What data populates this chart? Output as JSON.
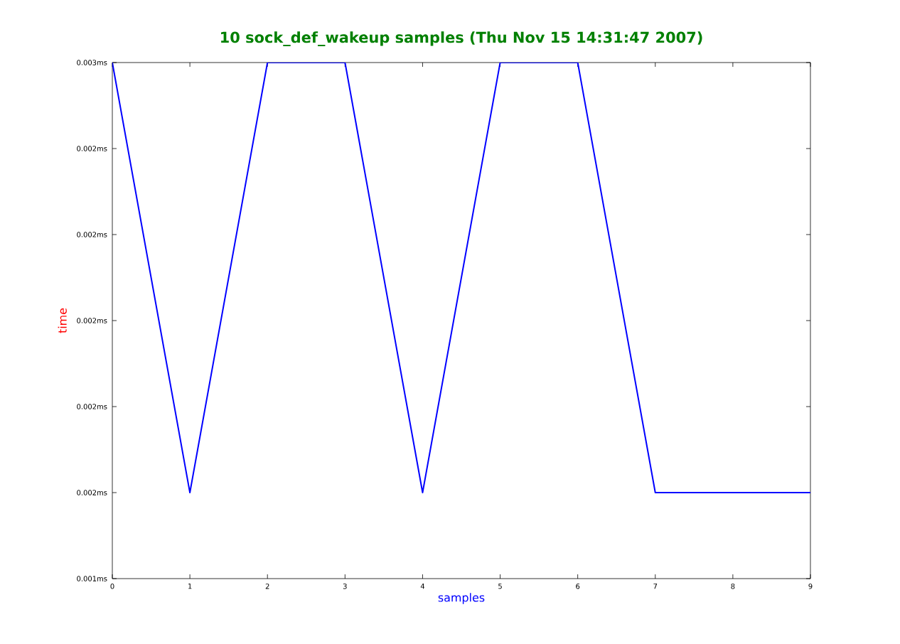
{
  "chart_data": {
    "type": "line",
    "title": "10 sock_def_wakeup samples (Thu Nov 15 14:31:47 2007)",
    "xlabel": "samples",
    "ylabel": "time",
    "x": [
      0,
      1,
      2,
      3,
      4,
      5,
      6,
      7,
      8,
      9
    ],
    "series": [
      {
        "color": "#0000ff",
        "values": [
          0.0026,
          0.0016,
          0.0026,
          0.0026,
          0.0016,
          0.0026,
          0.0026,
          0.0016,
          0.0016,
          0.0016
        ]
      }
    ],
    "xlim": [
      0,
      9
    ],
    "xticks": [
      0,
      1,
      2,
      3,
      4,
      5,
      6,
      7,
      8,
      9
    ],
    "ylim": [
      0.0014,
      0.0026
    ],
    "yticks": [
      {
        "value": 0.0014,
        "label": "0.001ms"
      },
      {
        "value": 0.0016,
        "label": "0.002ms"
      },
      {
        "value": 0.0018,
        "label": "0.002ms"
      },
      {
        "value": 0.002,
        "label": "0.002ms"
      },
      {
        "value": 0.0022,
        "label": "0.002ms"
      },
      {
        "value": 0.0024,
        "label": "0.002ms"
      },
      {
        "value": 0.0026,
        "label": "0.003ms"
      }
    ],
    "grid": false,
    "marker": "none",
    "line_style": "solid"
  }
}
